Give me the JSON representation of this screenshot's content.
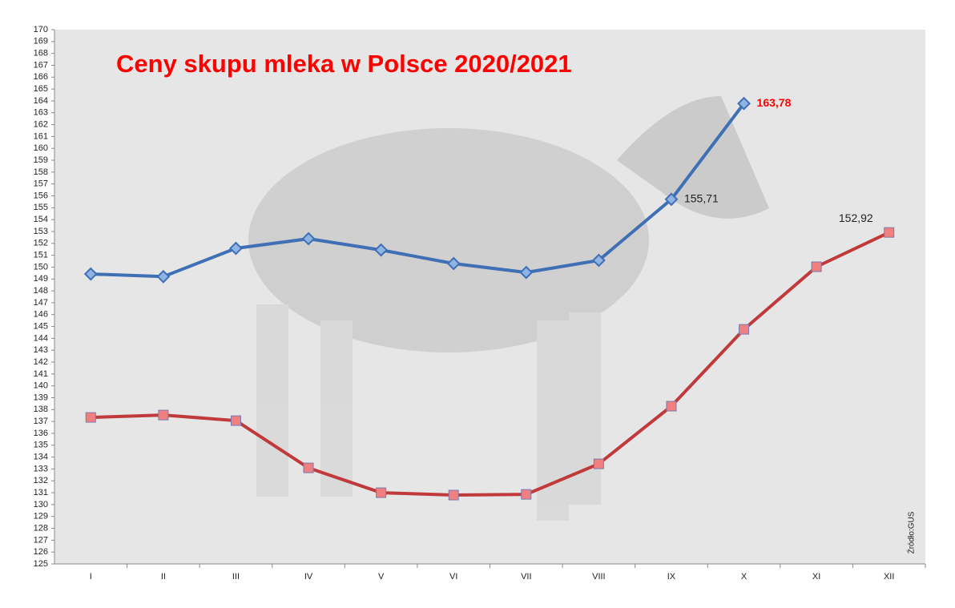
{
  "chart_data": {
    "type": "line",
    "title": "Ceny skupu mleka w Polsce 2020/2021",
    "annotation": "Źródło:GUS",
    "categories": [
      "I",
      "II",
      "III",
      "IV",
      "V",
      "VI",
      "VII",
      "VIII",
      "IX",
      "X",
      "XI",
      "XII"
    ],
    "series": [
      {
        "color": "#3f6fb5",
        "marker": "diamond",
        "values": [
          149.42,
          149.2,
          151.58,
          152.39,
          151.44,
          150.3,
          149.55,
          150.57,
          155.71,
          163.78,
          null,
          null
        ],
        "value_labels": [
          null,
          null,
          null,
          null,
          null,
          null,
          null,
          null,
          "155,71",
          "163,78",
          null,
          null
        ]
      },
      {
        "color": "#c0393b",
        "marker": "square",
        "values": [
          137.34,
          137.54,
          137.07,
          133.09,
          131.0,
          130.8,
          130.86,
          133.43,
          138.29,
          144.76,
          150.03,
          152.92
        ],
        "value_labels": [
          null,
          null,
          null,
          null,
          null,
          null,
          null,
          null,
          null,
          null,
          null,
          "152,92"
        ]
      }
    ],
    "ylim": [
      125,
      170
    ],
    "yticks": [
      125,
      126,
      127,
      128,
      129,
      130,
      131,
      132,
      133,
      134,
      135,
      136,
      137,
      138,
      139,
      140,
      141,
      142,
      143,
      144,
      145,
      146,
      147,
      148,
      149,
      150,
      151,
      152,
      153,
      154,
      155,
      156,
      157,
      158,
      159,
      160,
      161,
      162,
      163,
      164,
      165,
      166,
      167,
      168,
      169,
      170
    ],
    "grid": false
  }
}
